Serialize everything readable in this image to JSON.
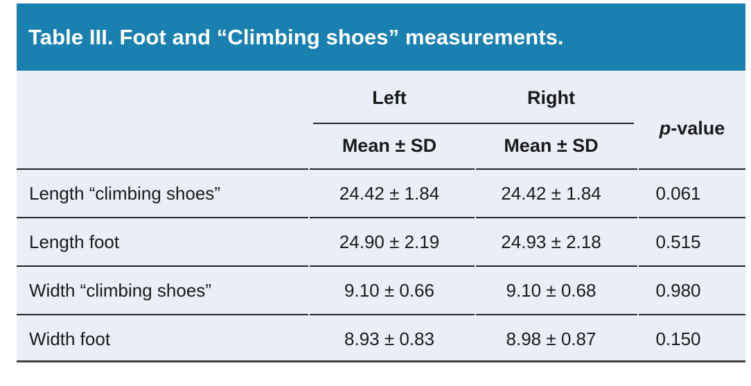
{
  "title": "Table III. Foot and “Climbing shoes” measurements.",
  "colors": {
    "title_bar_bg": "#1A80AF",
    "title_text": "#FFFFFF",
    "table_bg": "#EAEEF7",
    "body_text": "#1A1A1A",
    "row_rule": "#222222",
    "bottom_rule": "#3D3D3D"
  },
  "header": {
    "group_left": "Left",
    "group_right": "Right",
    "sub_left": "Mean ± SD",
    "sub_right": "Mean ± SD",
    "p_italic": "p",
    "p_rest": "-value"
  },
  "table": {
    "rows": [
      {
        "label": "Length “climbing shoes”",
        "left": "24.42 ± 1.84",
        "right": "24.42 ± 1.84",
        "p": "0.061"
      },
      {
        "label": "Length foot",
        "left": "24.90 ± 2.19",
        "right": "24.93 ± 2.18",
        "p": "0.515"
      },
      {
        "label": "Width “climbing shoes”",
        "left": "9.10 ± 0.66",
        "right": "9.10 ± 0.68",
        "p": "0.980"
      },
      {
        "label": "Width foot",
        "left": "8.93 ± 0.83",
        "right": "8.98 ± 0.87",
        "p": "0.150"
      }
    ]
  }
}
